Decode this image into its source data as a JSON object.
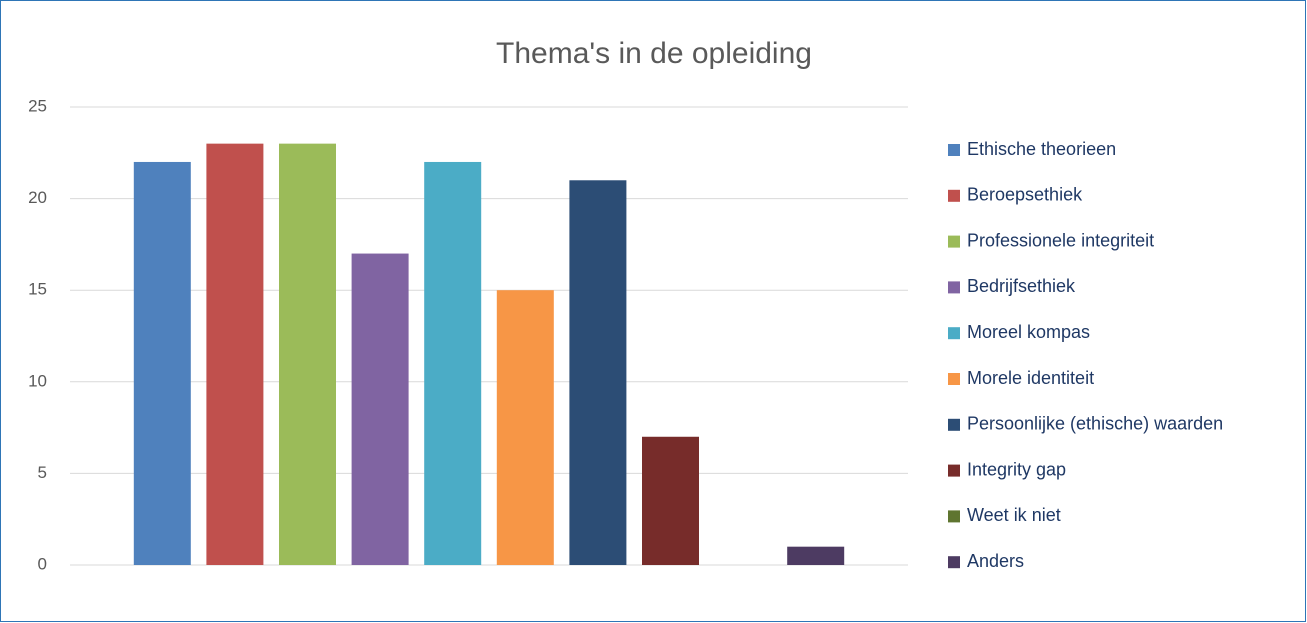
{
  "chart_data": {
    "type": "bar",
    "title": "Thema's in de opleiding",
    "categories": [
      null
    ],
    "series": [
      {
        "name": "Ethische theorieen",
        "color": "#4f81bd",
        "values": [
          22
        ]
      },
      {
        "name": "Beroepsethiek",
        "color": "#c0504d",
        "values": [
          23
        ]
      },
      {
        "name": "Professionele integriteit",
        "color": "#9bbb59",
        "values": [
          23
        ]
      },
      {
        "name": "Bedrijfsethiek",
        "color": "#8064a2",
        "values": [
          17
        ]
      },
      {
        "name": "Moreel kompas",
        "color": "#4bacc6",
        "values": [
          22
        ]
      },
      {
        "name": "Morele identiteit",
        "color": "#f79646",
        "values": [
          15
        ]
      },
      {
        "name": "Persoonlijke (ethische) waarden",
        "color": "#2c4d75",
        "values": [
          21
        ]
      },
      {
        "name": "Integrity gap",
        "color": "#772c2a",
        "values": [
          7
        ]
      },
      {
        "name": "Weet ik niet",
        "color": "#5f7530",
        "values": [
          0
        ]
      },
      {
        "name": "Anders",
        "color": "#4d3b62",
        "values": [
          1
        ]
      }
    ],
    "ylim": [
      0,
      25
    ],
    "yticks": [
      0,
      5,
      10,
      15,
      20,
      25
    ],
    "grid": true,
    "legend": "right"
  }
}
